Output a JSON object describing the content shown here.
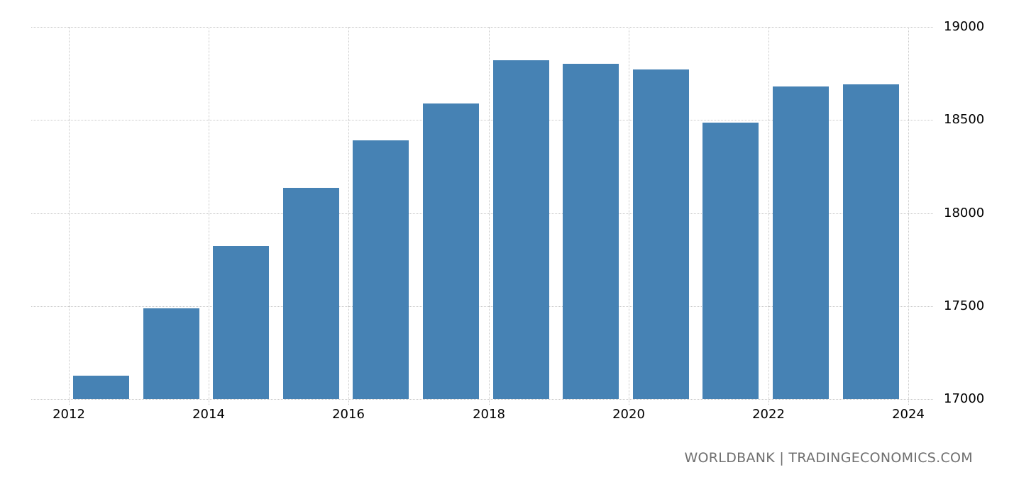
{
  "chart_data": {
    "type": "bar",
    "title": "",
    "xlabel": "",
    "ylabel": "",
    "categories": [
      "2012",
      "2013",
      "2014",
      "2015",
      "2016",
      "2017",
      "2018",
      "2019",
      "2020",
      "2021",
      "2022",
      "2023"
    ],
    "values": [
      17126,
      17488,
      17823,
      18135,
      18390,
      18589,
      18821,
      18802,
      18771,
      18486,
      18680,
      18691
    ],
    "ylim": [
      17000,
      19000
    ],
    "y_ticks": [
      "17000",
      "17500",
      "18000",
      "18500",
      "19000"
    ],
    "x_ticks": [
      "2012",
      "2014",
      "2016",
      "2018",
      "2020",
      "2022",
      "2024"
    ],
    "y_axis_position": "right",
    "grid": true,
    "legend": null,
    "bar_color": "#4682b4"
  },
  "source_label": "WORLDBANK | TRADINGECONOMICS.COM"
}
